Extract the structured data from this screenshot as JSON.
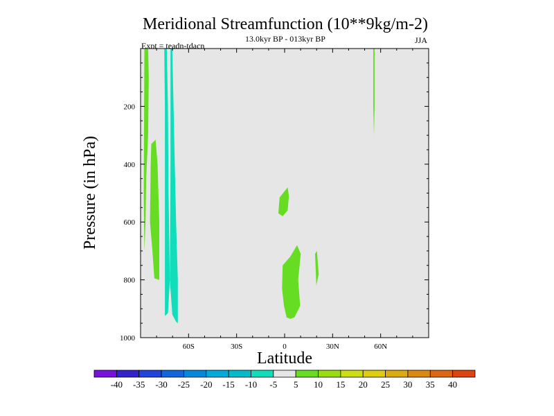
{
  "chart_data": {
    "type": "contour",
    "title": "Meridional Streamfunction (10**9kg/m-2)",
    "subtitle": "13.0kyr BP - 013kyr BP",
    "left_label": "Expt = teadn-tdacn",
    "right_label": "JJA",
    "xlabel": "Latitude",
    "ylabel": "Pressure (in hPa)",
    "xlim": [
      -90,
      90
    ],
    "ylim": [
      1000,
      0
    ],
    "x_ticks": [
      {
        "value": -60,
        "label": "60S"
      },
      {
        "value": -30,
        "label": "30S"
      },
      {
        "value": 0,
        "label": "0"
      },
      {
        "value": 30,
        "label": "30N"
      },
      {
        "value": 60,
        "label": "60N"
      }
    ],
    "y_ticks": [
      {
        "value": 200,
        "label": "200"
      },
      {
        "value": 400,
        "label": "400"
      },
      {
        "value": 600,
        "label": "600"
      },
      {
        "value": 800,
        "label": "800"
      },
      {
        "value": 1000,
        "label": "1000"
      }
    ],
    "background_color": "#e6e6e6",
    "regions": [
      {
        "name": "green-band-far-south",
        "color": "#66dd22",
        "points": [
          [
            -87.6,
            0
          ],
          [
            -85.3,
            0
          ],
          [
            -84.9,
            100
          ],
          [
            -85.3,
            300
          ],
          [
            -86.5,
            450
          ],
          [
            -86.9,
            600
          ],
          [
            -87.6,
            700
          ],
          [
            -88.0,
            500
          ]
        ]
      },
      {
        "name": "green-band-south",
        "color": "#66dd22",
        "points": [
          [
            -83.3,
            330
          ],
          [
            -80.6,
            315
          ],
          [
            -79.4,
            400
          ],
          [
            -78.3,
            600
          ],
          [
            -78.3,
            800
          ],
          [
            -81.4,
            795
          ],
          [
            -82.6,
            700
          ],
          [
            -84.1,
            600
          ],
          [
            -83.7,
            400
          ]
        ]
      },
      {
        "name": "cyan-band-south",
        "color": "#11ddbb",
        "points": [
          [
            -75.2,
            0
          ],
          [
            -73.6,
            0
          ],
          [
            -72.9,
            200
          ],
          [
            -72.5,
            500
          ],
          [
            -71.7,
            800
          ],
          [
            -72.9,
            915
          ],
          [
            -74.8,
            925
          ],
          [
            -74.8,
            600
          ],
          [
            -74.8,
            200
          ]
        ]
      },
      {
        "name": "cyan-band-south-2",
        "color": "#11ddbb",
        "points": [
          [
            -71.3,
            0
          ],
          [
            -70.2,
            0
          ],
          [
            -69.0,
            300
          ],
          [
            -67.8,
            600
          ],
          [
            -66.7,
            800
          ],
          [
            -66.7,
            950
          ],
          [
            -67.8,
            945
          ],
          [
            -70.2,
            920
          ],
          [
            -71.7,
            800
          ],
          [
            -71.3,
            400
          ]
        ]
      },
      {
        "name": "green-blob-mid",
        "color": "#66dd22",
        "points": [
          [
            -3.1,
            515
          ],
          [
            1.9,
            480
          ],
          [
            2.7,
            510
          ],
          [
            1.9,
            560
          ],
          [
            -1.2,
            580
          ],
          [
            -3.9,
            570
          ],
          [
            -3.5,
            540
          ]
        ]
      },
      {
        "name": "green-blob-lower",
        "color": "#66dd22",
        "points": [
          [
            -1.2,
            750
          ],
          [
            3.5,
            720
          ],
          [
            7.8,
            680
          ],
          [
            10.1,
            710
          ],
          [
            8.5,
            800
          ],
          [
            9.7,
            890
          ],
          [
            6.2,
            930
          ],
          [
            3.5,
            935
          ],
          [
            1.2,
            930
          ],
          [
            -0.4,
            890
          ],
          [
            -1.6,
            830
          ]
        ]
      },
      {
        "name": "green-blob-small",
        "color": "#66dd22",
        "points": [
          [
            19.0,
            710
          ],
          [
            20.2,
            700
          ],
          [
            21.3,
            780
          ],
          [
            19.8,
            820
          ],
          [
            19.4,
            760
          ]
        ]
      },
      {
        "name": "green-line-north",
        "color": "#66dd22",
        "points": [
          [
            55.4,
            0
          ],
          [
            56.2,
            0
          ],
          [
            56.2,
            200
          ],
          [
            55.8,
            300
          ],
          [
            55.4,
            200
          ]
        ]
      }
    ],
    "colorbar": {
      "labels": [
        "-40",
        "-35",
        "-30",
        "-25",
        "-20",
        "-15",
        "-10",
        "-5",
        "5",
        "10",
        "15",
        "20",
        "25",
        "30",
        "35",
        "40"
      ],
      "colors": [
        "#7711dd",
        "#3322cc",
        "#2244dd",
        "#1166dd",
        "#0088dd",
        "#00aadd",
        "#00bbcc",
        "#11ddbb",
        "#e6e6e6",
        "#66dd22",
        "#99dd11",
        "#ccdd11",
        "#ddcc11",
        "#ddaa11",
        "#dd8811",
        "#dd6611",
        "#dd4411"
      ]
    }
  }
}
